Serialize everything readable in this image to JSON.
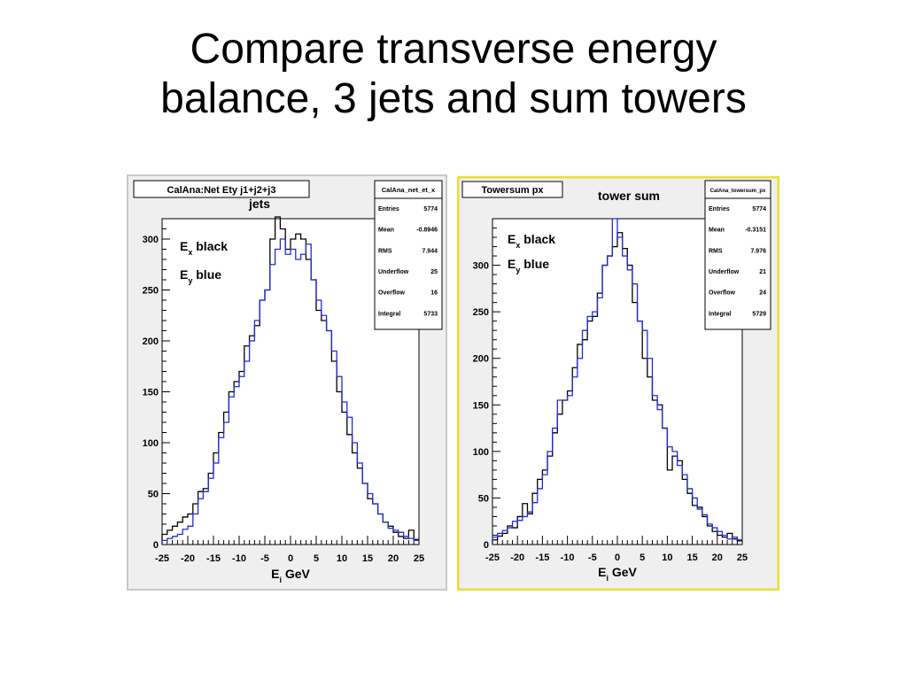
{
  "slide": {
    "title_line1": "Compare transverse energy",
    "title_line2": "balance, 3 jets and sum towers"
  },
  "colors": {
    "ex_line": "#000000",
    "ey_line": "#1f2ed1",
    "frame_bg": "#efefef",
    "plot_bg": "#ffffff",
    "selected_border": "#e9df3a"
  },
  "chart_data": [
    {
      "type": "histogram",
      "title": "CalAna:Net Ety j1+j2+j3",
      "subtitle": "jets",
      "xlabel": "E",
      "xlabel_sub": "i",
      "xlabel_unit": " GeV",
      "xlim": [
        -25,
        25
      ],
      "ylim": [
        0,
        320
      ],
      "xticks": [
        -25,
        -20,
        -15,
        -10,
        -5,
        0,
        5,
        10,
        15,
        20,
        25
      ],
      "yticks": [
        0,
        50,
        100,
        150,
        200,
        250,
        300
      ],
      "legend": [
        {
          "main": "E",
          "sub": "x",
          "text": " black"
        },
        {
          "main": "E",
          "sub": "y",
          "text": " blue"
        }
      ],
      "stats": {
        "name": "CalAna_net_et_x",
        "rows": [
          {
            "label": "Entries",
            "value": "5774"
          },
          {
            "label": "Mean",
            "value": "-0.8946"
          },
          {
            "label": "RMS",
            "value": "7.944"
          },
          {
            "label": "Underflow",
            "value": "25"
          },
          {
            "label": "Overflow",
            "value": "16"
          },
          {
            "label": "Integral",
            "value": "5733"
          }
        ]
      },
      "bin_edges_start": -25,
      "bin_width": 1,
      "series": [
        {
          "name": "Ex",
          "color": "#000000",
          "values": [
            10,
            14,
            18,
            22,
            27,
            30,
            40,
            52,
            55,
            70,
            90,
            110,
            130,
            150,
            160,
            170,
            195,
            205,
            215,
            240,
            250,
            300,
            330,
            310,
            290,
            300,
            305,
            300,
            280,
            260,
            230,
            220,
            210,
            180,
            150,
            130,
            108,
            90,
            75,
            60,
            45,
            40,
            30,
            22,
            18,
            12,
            8,
            6,
            14,
            5
          ]
        },
        {
          "name": "Ey",
          "color": "#1f2ed1",
          "values": [
            4,
            6,
            8,
            10,
            15,
            18,
            30,
            45,
            52,
            65,
            80,
            105,
            120,
            145,
            155,
            165,
            180,
            200,
            220,
            240,
            250,
            275,
            290,
            300,
            285,
            290,
            280,
            285,
            295,
            260,
            240,
            225,
            210,
            190,
            165,
            140,
            125,
            100,
            80,
            60,
            50,
            40,
            30,
            22,
            16,
            14,
            12,
            8,
            6,
            4
          ]
        }
      ]
    },
    {
      "type": "histogram",
      "title": "Towersum px",
      "subtitle": "tower sum",
      "xlabel": "E",
      "xlabel_sub": "i",
      "xlabel_unit": " GeV",
      "xlim": [
        -25,
        25
      ],
      "ylim": [
        0,
        350
      ],
      "xticks": [
        -25,
        -20,
        -15,
        -10,
        -5,
        0,
        5,
        10,
        15,
        20,
        25
      ],
      "yticks": [
        0,
        50,
        100,
        150,
        200,
        250,
        300
      ],
      "legend": [
        {
          "main": "E",
          "sub": "x",
          "text": " black"
        },
        {
          "main": "E",
          "sub": "y",
          "text": " blue"
        }
      ],
      "stats": {
        "name": "CalAna_towersum_px",
        "rows": [
          {
            "label": "Entries",
            "value": "5774"
          },
          {
            "label": "Mean",
            "value": "-0.3151"
          },
          {
            "label": "RMS",
            "value": "7.976"
          },
          {
            "label": "Underflow",
            "value": "21"
          },
          {
            "label": "Overflow",
            "value": "24"
          },
          {
            "label": "Integral",
            "value": "5729"
          }
        ]
      },
      "bin_edges_start": -25,
      "bin_width": 1,
      "series": [
        {
          "name": "Ex",
          "color": "#000000",
          "values": [
            5,
            9,
            12,
            20,
            18,
            30,
            44,
            33,
            55,
            70,
            80,
            95,
            120,
            140,
            155,
            165,
            190,
            215,
            220,
            240,
            245,
            270,
            300,
            310,
            320,
            335,
            318,
            300,
            260,
            240,
            200,
            180,
            155,
            150,
            125,
            80,
            95,
            90,
            70,
            55,
            42,
            40,
            30,
            20,
            14,
            10,
            8,
            12,
            6,
            4
          ]
        },
        {
          "name": "Ey",
          "color": "#1f2ed1",
          "values": [
            8,
            12,
            15,
            18,
            25,
            26,
            30,
            35,
            45,
            60,
            75,
            100,
            125,
            155,
            155,
            160,
            180,
            200,
            230,
            245,
            250,
            265,
            300,
            310,
            350,
            330,
            310,
            295,
            280,
            240,
            230,
            200,
            160,
            145,
            125,
            105,
            100,
            85,
            75,
            60,
            50,
            38,
            32,
            22,
            18,
            14,
            10,
            6,
            8,
            5
          ]
        }
      ]
    }
  ]
}
